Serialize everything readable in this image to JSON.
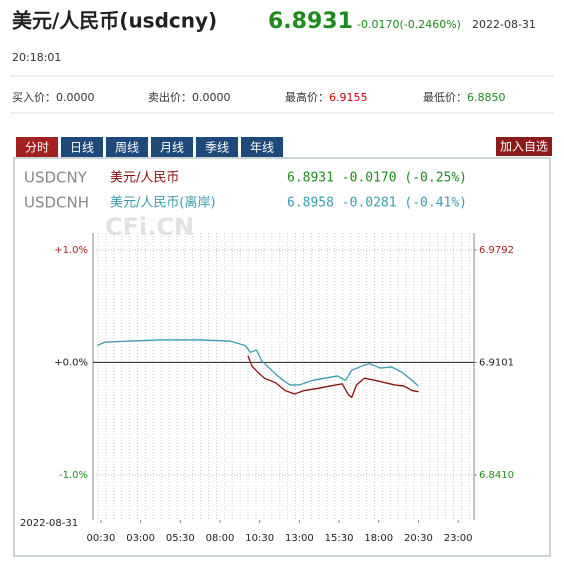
{
  "header": {
    "name": "美元/人民币(usdcny)",
    "price": "6.8931",
    "change": "-0.0170(-0.2460%)",
    "date": "2022-08-31",
    "time": "20:18:01"
  },
  "quotes": [
    {
      "label": "买入价：",
      "value": "0.0000"
    },
    {
      "label": "卖出价：",
      "value": "0.0000"
    },
    {
      "label": "最高价：",
      "value": "6.9155"
    },
    {
      "label": "最低价：",
      "value": "6.8850"
    }
  ],
  "tabs": [
    "分时",
    "日线",
    "周线",
    "月线",
    "季线",
    "年线"
  ],
  "button": "加入自选",
  "chart_data": {
    "type": "line",
    "watermark": "CFi.CN",
    "date": "2022-08-31",
    "xlim": [
      0,
      24
    ],
    "xticks": [
      {
        "value": 0.5,
        "label": "00:30"
      },
      {
        "value": 3,
        "label": "03:00"
      },
      {
        "value": 5.5,
        "label": "05:30"
      },
      {
        "value": 8,
        "label": "08:00"
      },
      {
        "value": 10.5,
        "label": "10:30"
      },
      {
        "value": 13,
        "label": "13:00"
      },
      {
        "value": 15.5,
        "label": "15:30"
      },
      {
        "value": 18,
        "label": "18:00"
      },
      {
        "value": 20.5,
        "label": "20:30"
      },
      {
        "value": 23,
        "label": "23:00"
      }
    ],
    "ylim": [
      -1.4,
      1.15
    ],
    "yticks": [
      {
        "value": 1,
        "label": "+1.0%"
      },
      {
        "value": 0,
        "label": "+0.0%"
      },
      {
        "value": -1,
        "label": "-1.0%"
      }
    ],
    "y2lim": [
      6.8134,
      6.9896
    ],
    "y2ticks": [
      6.9792,
      6.9101,
      6.841
    ],
    "y2tick_labels": [
      "6.9792",
      "6.9101",
      "6.8410"
    ],
    "series": [
      {
        "code": "USDCNY",
        "name": "美元/人民币",
        "quote": "6.8931 -0.0170 (-0.25%)",
        "color": "#8b1010",
        "quote_color": "#1e8a1e",
        "x": [
          9.76,
          10.0,
          10.4,
          10.8,
          11.5,
          12.1,
          12.7,
          13.3,
          14.2,
          14.9,
          15.7,
          16.1,
          16.3,
          16.6,
          17.1,
          17.8,
          18.4,
          19.0,
          19.6,
          20.1,
          20.5
        ],
        "values": [
          0.06,
          -0.03,
          -0.09,
          -0.14,
          -0.18,
          -0.25,
          -0.28,
          -0.25,
          -0.23,
          -0.21,
          -0.19,
          -0.29,
          -0.31,
          -0.2,
          -0.14,
          -0.16,
          -0.18,
          -0.2,
          -0.21,
          -0.25,
          -0.26
        ]
      },
      {
        "code": "USDCNH",
        "name": "美元/人民币(离岸)",
        "quote": "6.8958 -0.0281 (-0.41%)",
        "color": "#3a9bb0",
        "quote_color": "#3a9bb0",
        "x": [
          0.25,
          0.76,
          2.3,
          4.2,
          6.7,
          8.6,
          9.6,
          9.9,
          10.3,
          10.6,
          11.1,
          11.8,
          12.4,
          13.0,
          13.8,
          14.6,
          15.4,
          15.9,
          16.3,
          16.8,
          17.4,
          18.1,
          18.8,
          19.5,
          20.1,
          20.5
        ],
        "values": [
          0.15,
          0.18,
          0.19,
          0.2,
          0.2,
          0.19,
          0.15,
          0.09,
          0.11,
          0.02,
          -0.05,
          -0.14,
          -0.2,
          -0.2,
          -0.16,
          -0.14,
          -0.12,
          -0.16,
          -0.07,
          -0.04,
          -0.01,
          -0.05,
          -0.04,
          -0.09,
          -0.16,
          -0.21
        ]
      }
    ]
  }
}
